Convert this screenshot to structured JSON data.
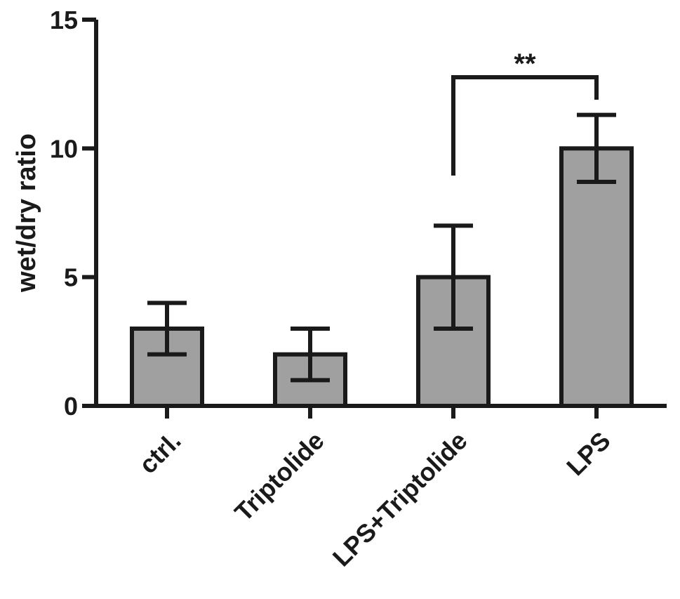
{
  "chart_data": {
    "type": "bar",
    "title": "",
    "xlabel": "",
    "ylabel": "wet/dry ratio",
    "ylim": [
      0,
      15
    ],
    "yticks": [
      0,
      5,
      10,
      15
    ],
    "categories": [
      "ctrl.",
      "Triptolide",
      "LPS+Triptolide",
      "LPS"
    ],
    "series": [
      {
        "values": [
          3,
          2,
          5,
          10
        ],
        "error": [
          1,
          1,
          2,
          1.3
        ],
        "color": "#a0a0a0"
      }
    ],
    "significance": [
      {
        "from": "LPS+Triptolide",
        "to": "LPS",
        "label": "**"
      }
    ],
    "grid": false,
    "legend": "none"
  }
}
